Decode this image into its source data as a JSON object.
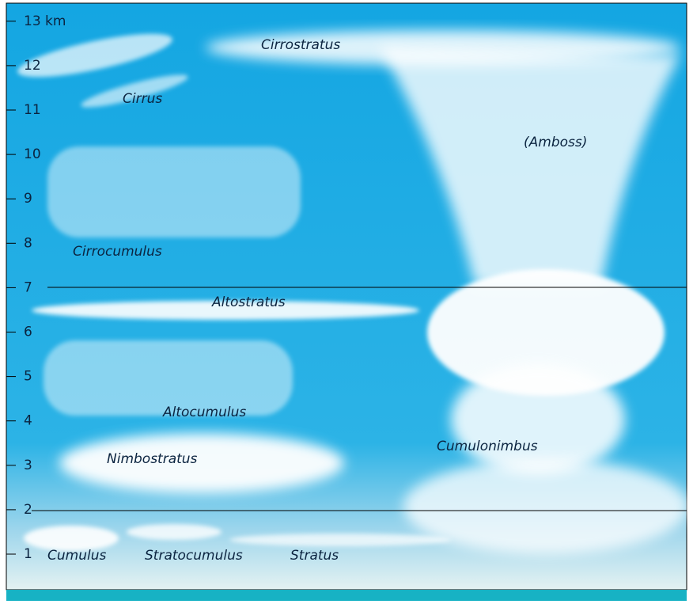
{
  "axis": {
    "ticks": [
      1,
      2,
      3,
      4,
      5,
      6,
      7,
      8,
      9,
      10,
      11,
      12,
      {
        "value": 13,
        "label": "13 km"
      }
    ]
  },
  "clouds": [
    {
      "label": "Cirrostratus"
    },
    {
      "label": "Cirrus"
    },
    {
      "label": "(Amboss)"
    },
    {
      "label": "Cirrocumulus"
    },
    {
      "label": "Altostratus"
    },
    {
      "label": "Altocumulus"
    },
    {
      "label": "Nimbostratus"
    },
    {
      "label": "Cumulonimbus"
    },
    {
      "label": "Cumulus"
    },
    {
      "label": "Stratocumulus"
    },
    {
      "label": "Stratus"
    }
  ]
}
